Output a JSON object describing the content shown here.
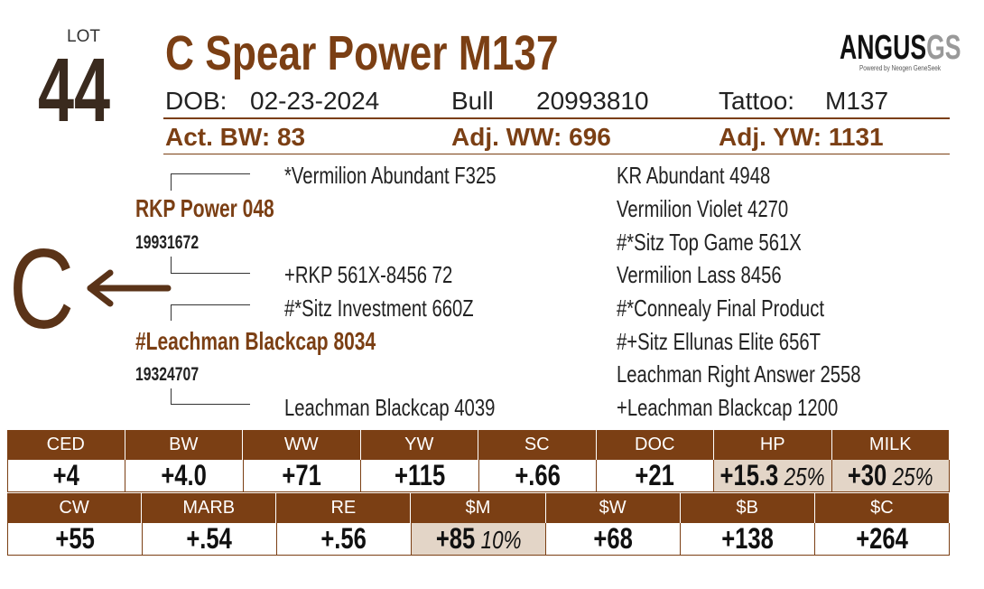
{
  "lot": {
    "label": "LOT",
    "number": "44"
  },
  "title": "C Spear Power M137",
  "logo": {
    "text": "ANGUS",
    "suffix": "GS",
    "tagline": "Powered by Neogen GeneSeek"
  },
  "info": [
    {
      "label": "DOB:",
      "value": "02-23-2024"
    },
    {
      "label": "Bull",
      "value": "20993810"
    },
    {
      "label": "Tattoo:",
      "value": "M137"
    }
  ],
  "weights": [
    {
      "label": "Act. BW:",
      "value": "83"
    },
    {
      "label": "Adj. WW:",
      "value": "696"
    },
    {
      "label": "Adj. YW:",
      "value": "1131"
    }
  ],
  "brand": "C",
  "pedigree": {
    "sire": {
      "name": "RKP Power 048",
      "reg": "19931672"
    },
    "sire_sire": "*Vermilion Abundant F325",
    "sire_dam": "+RKP 561X-8456 72",
    "dam": {
      "name": "#Leachman Blackcap 8034",
      "reg": "19324707"
    },
    "dam_sire": "#*Sitz Investment 660Z",
    "dam_dam": "Leachman Blackcap 4039",
    "grandparents": [
      "KR Abundant 4948",
      "Vermilion Violet 4270",
      "#*Sitz Top Game 561X",
      "Vermilion Lass 8456",
      "#*Connealy Final Product",
      "#+Sitz Ellunas Elite 656T",
      "Leachman Right Answer 2558",
      "+Leachman Blackcap 1200"
    ]
  },
  "epds": [
    {
      "headers": [
        "CED",
        "BW",
        "WW",
        "YW",
        "SC",
        "DOC",
        "HP",
        "MILK"
      ],
      "values": [
        {
          "value": "+4"
        },
        {
          "value": "+4.0"
        },
        {
          "value": "+71"
        },
        {
          "value": "+115"
        },
        {
          "value": "+.66"
        },
        {
          "value": "+21"
        },
        {
          "value": "+15.3",
          "pct": "25%"
        },
        {
          "value": "+30",
          "pct": "25%"
        }
      ]
    },
    {
      "headers": [
        "CW",
        "MARB",
        "RE",
        "$M",
        "$W",
        "$B",
        "$C"
      ],
      "values": [
        {
          "value": "+55"
        },
        {
          "value": "+.54"
        },
        {
          "value": "+.56"
        },
        {
          "value": "+85",
          "pct": "10%"
        },
        {
          "value": "+68"
        },
        {
          "value": "+138"
        },
        {
          "value": "+264"
        }
      ]
    }
  ]
}
